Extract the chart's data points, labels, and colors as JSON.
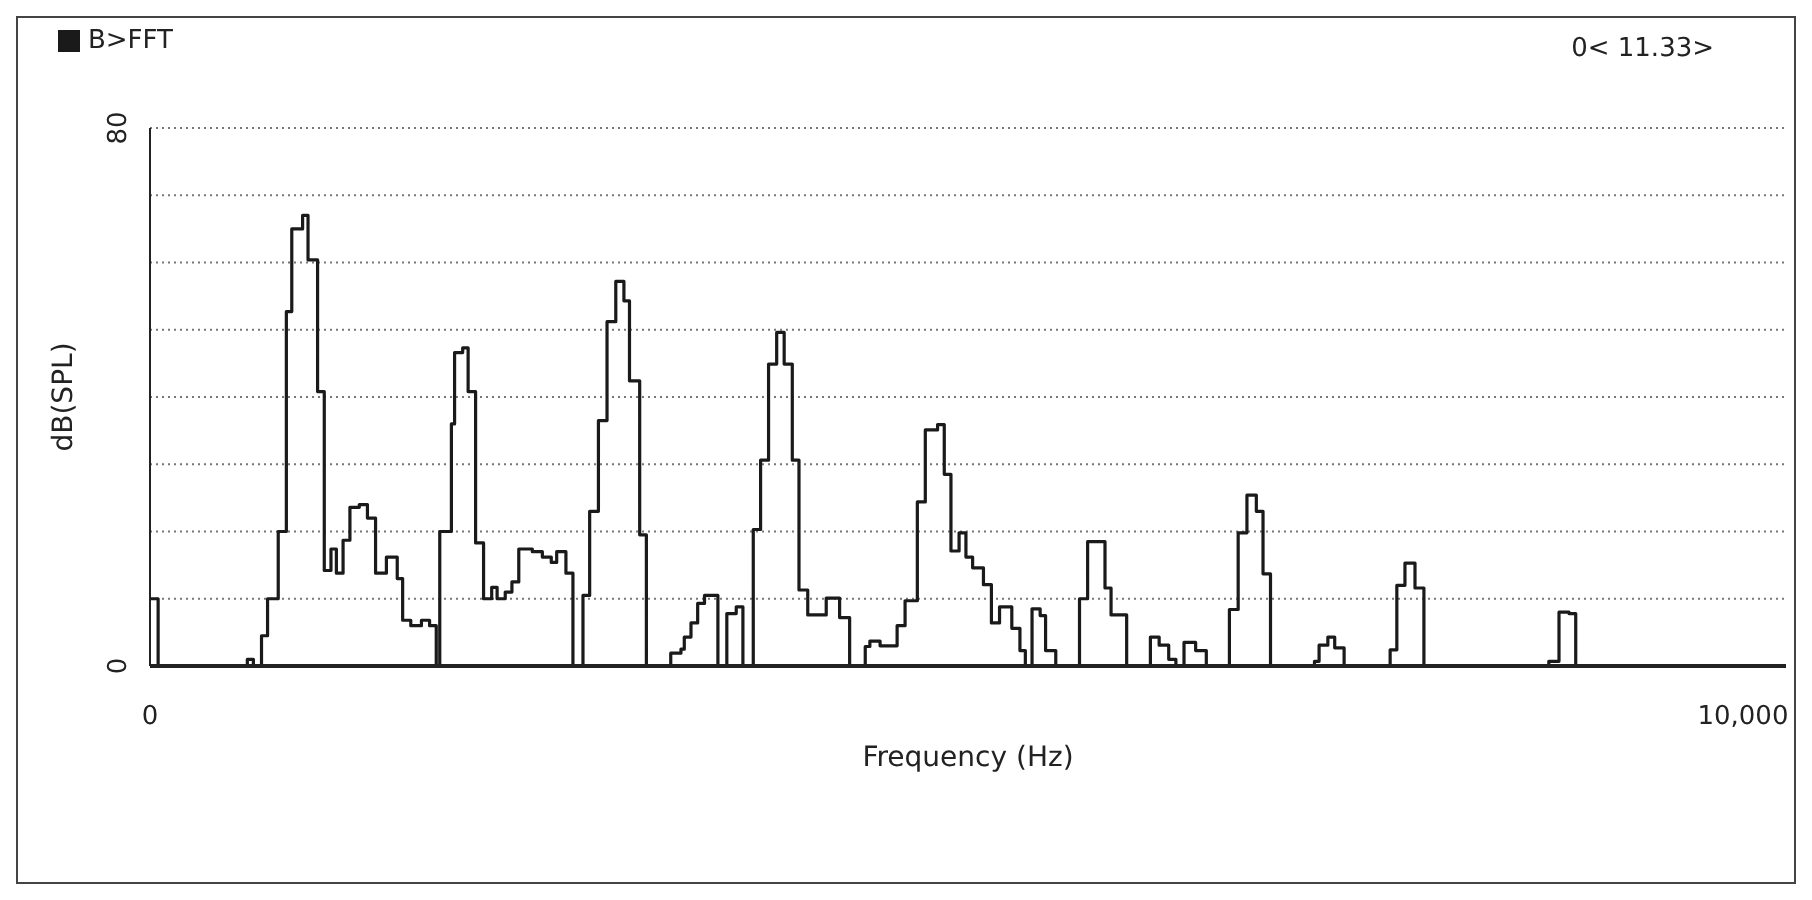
{
  "chart_data": {
    "type": "step",
    "xlabel": "Frequency (Hz)",
    "ylabel": "dB(SPL)",
    "annotations": [
      "0< 11.33>"
    ],
    "xlim": [
      0,
      10270
    ],
    "xticks": [
      0,
      {
        "value": 10000,
        "label": "10,000"
      }
    ],
    "ylim": [
      0,
      80
    ],
    "yticks": [
      0,
      {
        "value": 10,
        "label": null
      },
      {
        "value": 20,
        "label": null
      },
      {
        "value": 30,
        "label": null
      },
      {
        "value": 40,
        "label": null
      },
      {
        "value": 50,
        "label": null
      },
      {
        "value": 60,
        "label": null
      },
      {
        "value": 70,
        "label": null
      },
      80
    ],
    "grid": "y",
    "legend": "top left",
    "marker": "none",
    "line_style": "solid",
    "series": [
      {
        "name": "B>FFT",
        "color": "#1a1a1a",
        "x": [
          0,
          51,
          611,
          649,
          700,
          738,
          805,
          856,
          890,
          958,
          992,
          1052,
          1094,
          1136,
          1170,
          1212,
          1255,
          1314,
          1365,
          1416,
          1484,
          1552,
          1586,
          1637,
          1704,
          1755,
          1797,
          1819,
          1892,
          1912,
          1963,
          1997,
          2044,
          2094,
          2145,
          2179,
          2230,
          2272,
          2315,
          2400,
          2463,
          2519,
          2553,
          2611,
          2655,
          2718,
          2760,
          2815,
          2869,
          2924,
          2975,
          3010,
          3074,
          3116,
          3269,
          3333,
          3354,
          3396,
          3438,
          3481,
          3565,
          3621,
          3680,
          3722,
          3787,
          3833,
          3883,
          3934,
          3981,
          4032,
          4074,
          4129,
          4245,
          4329,
          4392,
          4490,
          4519,
          4583,
          4690,
          4740,
          4817,
          4867,
          4944,
          4986,
          5028,
          5079,
          5122,
          5164,
          5232,
          5282,
          5333,
          5410,
          5461,
          5495,
          5537,
          5588,
          5622,
          5686,
          5835,
          5886,
          5995,
          6033,
          6131,
          6280,
          6335,
          6395,
          6440,
          6491,
          6564,
          6631,
          6776,
          6831,
          6886,
          6945,
          6987,
          7034,
          7310,
          7339,
          7394,
          7437,
          7496,
          7785,
          7827,
          7878,
          7941,
          7997,
          8781,
          8845,
          8908,
          8950,
          10265
        ],
        "values": [
          10,
          0,
          1,
          0,
          4.5,
          10,
          20,
          52.7,
          65,
          67,
          60.4,
          40.8,
          14.2,
          17.4,
          13.8,
          18.7,
          23.6,
          24,
          22,
          13.8,
          16.2,
          13,
          6.8,
          6,
          6.8,
          6,
          0,
          20,
          36,
          46.6,
          47.3,
          40.8,
          18.3,
          10,
          11.7,
          10,
          11,
          12.5,
          17.4,
          17,
          16.2,
          15.4,
          17,
          13.8,
          0,
          10.5,
          23,
          36.5,
          51.2,
          57.2,
          54.3,
          42.4,
          19.5,
          0,
          1.9,
          2.5,
          4.3,
          6.4,
          9.3,
          10.5,
          0,
          7.8,
          8.8,
          0,
          20.3,
          30.6,
          44.9,
          49.6,
          44.9,
          30.6,
          11.3,
          7.6,
          10.1,
          7.2,
          0,
          2.9,
          3.7,
          3,
          6,
          9.7,
          24.4,
          35.1,
          35.9,
          28.5,
          17.1,
          19.8,
          16.2,
          14.6,
          12.1,
          6.4,
          8.8,
          5.6,
          2.3,
          0,
          8.5,
          7.5,
          2.3,
          0,
          10,
          18.5,
          11.6,
          7.6,
          0,
          4.3,
          3.1,
          1,
          0,
          3.5,
          2.3,
          0,
          8.4,
          19.8,
          25.4,
          23,
          13.7,
          0,
          0.7,
          3.1,
          4.3,
          2.7,
          0,
          2.4,
          12,
          15.3,
          11.6,
          0,
          0.7,
          8,
          7.8,
          0,
          0
        ]
      }
    ]
  }
}
